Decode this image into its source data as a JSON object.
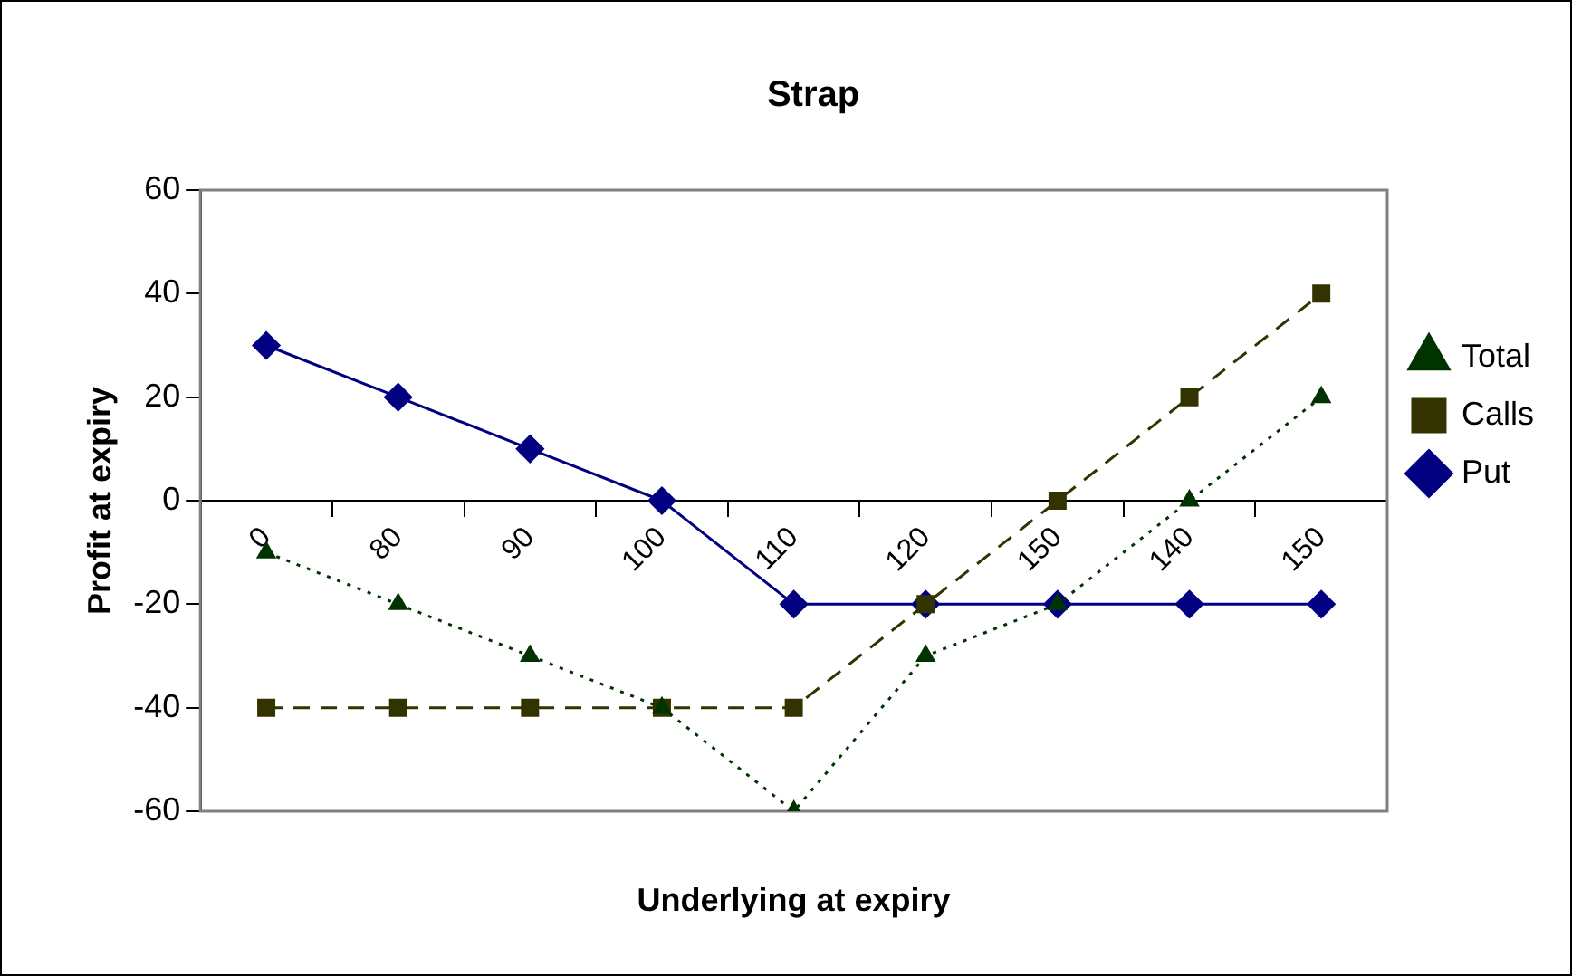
{
  "chart_data": {
    "type": "line",
    "title": "Strap",
    "xlabel": "Underlying at expiry",
    "ylabel": "Profit at expiry",
    "categories": [
      "0",
      "80",
      "90",
      "100",
      "110",
      "120",
      "150",
      "140",
      "150"
    ],
    "series": [
      {
        "name": "Put",
        "color": "#000080",
        "marker": "diamond",
        "line_style": "solid",
        "values": [
          30,
          20,
          10,
          0,
          -20,
          -20,
          -20,
          -20,
          -20
        ]
      },
      {
        "name": "Calls",
        "color": "#333300",
        "marker": "square",
        "line_style": "dashed",
        "values": [
          -40,
          -40,
          -40,
          -40,
          -40,
          -20,
          0,
          20,
          40
        ]
      },
      {
        "name": "Total",
        "color": "#003300",
        "marker": "triangle",
        "line_style": "dotted",
        "values": [
          -10,
          -20,
          -30,
          -40,
          -60,
          -30,
          -20,
          0,
          20
        ]
      }
    ],
    "ylim": [
      -60,
      60
    ],
    "yticks": [
      -60,
      -40,
      -20,
      0,
      20,
      40,
      60
    ],
    "grid": false,
    "legend": "right"
  }
}
